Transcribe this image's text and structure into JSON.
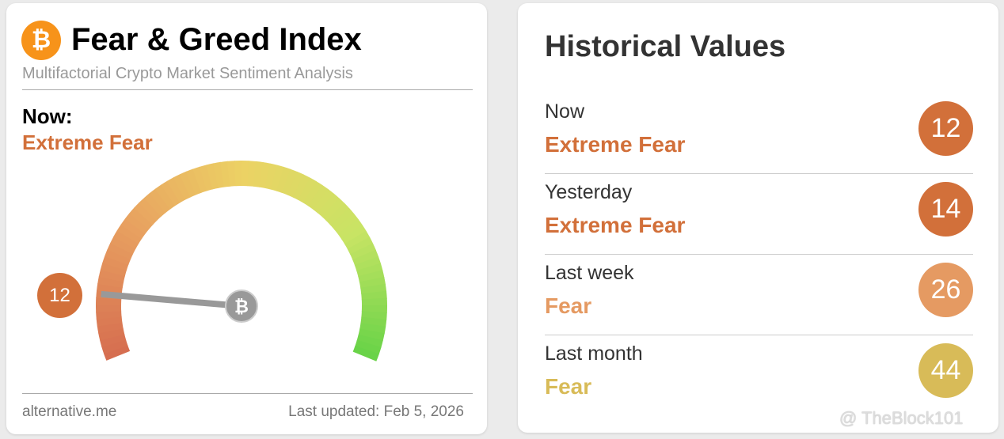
{
  "left": {
    "title": "Fear & Greed Index",
    "subtitle": "Multifactorial Crypto Market Sentiment Analysis",
    "now_label": "Now:",
    "now_value": "Extreme Fear",
    "gauge_value": 12,
    "gauge_value_text": "12",
    "logo_icon": "bitcoin-icon",
    "footer_site": "alternative.me",
    "footer_updated": "Last updated: Feb 5, 2026"
  },
  "right": {
    "title": "Historical Values",
    "rows": [
      {
        "label": "Now",
        "value": "Extreme Fear",
        "score": "12",
        "color": "#d2703a"
      },
      {
        "label": "Yesterday",
        "value": "Extreme Fear",
        "score": "14",
        "color": "#d2703a"
      },
      {
        "label": "Last week",
        "value": "Fear",
        "score": "26",
        "color": "#e59a62"
      },
      {
        "label": "Last month",
        "value": "Fear",
        "score": "44",
        "color": "#d8bb58"
      }
    ]
  },
  "watermark": "@ TheBlock101"
}
